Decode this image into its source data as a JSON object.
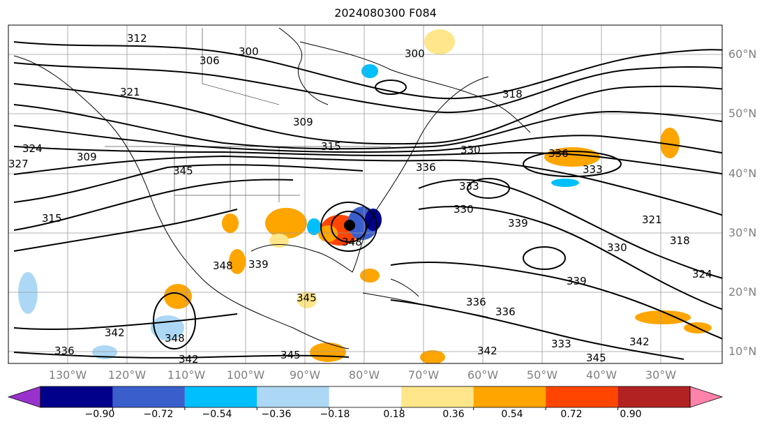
{
  "title": "2024080300 F084",
  "lat_labels": [
    "60°N",
    "50°N",
    "40°N",
    "30°N",
    "20°N",
    "10°N"
  ],
  "lon_labels": [
    "130°W",
    "120°W",
    "110°W",
    "100°W",
    "90°W",
    "80°W",
    "70°W",
    "60°W",
    "50°W",
    "40°W",
    "30°W"
  ],
  "contour_labels": [
    "300",
    "306",
    "312",
    "309",
    "315",
    "321",
    "324",
    "327",
    "330",
    "333",
    "336",
    "339",
    "342",
    "345",
    "348",
    "318"
  ],
  "colorbar": {
    "ticks": [
      "−0.90",
      "−0.72",
      "−0.54",
      "−0.36",
      "−0.18",
      "0.18",
      "0.36",
      "0.54",
      "0.72",
      "0.90"
    ],
    "colors": [
      "#9932cc",
      "#00008b",
      "#3a5fcd",
      "#00bfff",
      "#add8f5",
      "#ffffff",
      "#ffe68a",
      "#ffa500",
      "#ff4500",
      "#b22222",
      "#ff82ab"
    ]
  }
}
